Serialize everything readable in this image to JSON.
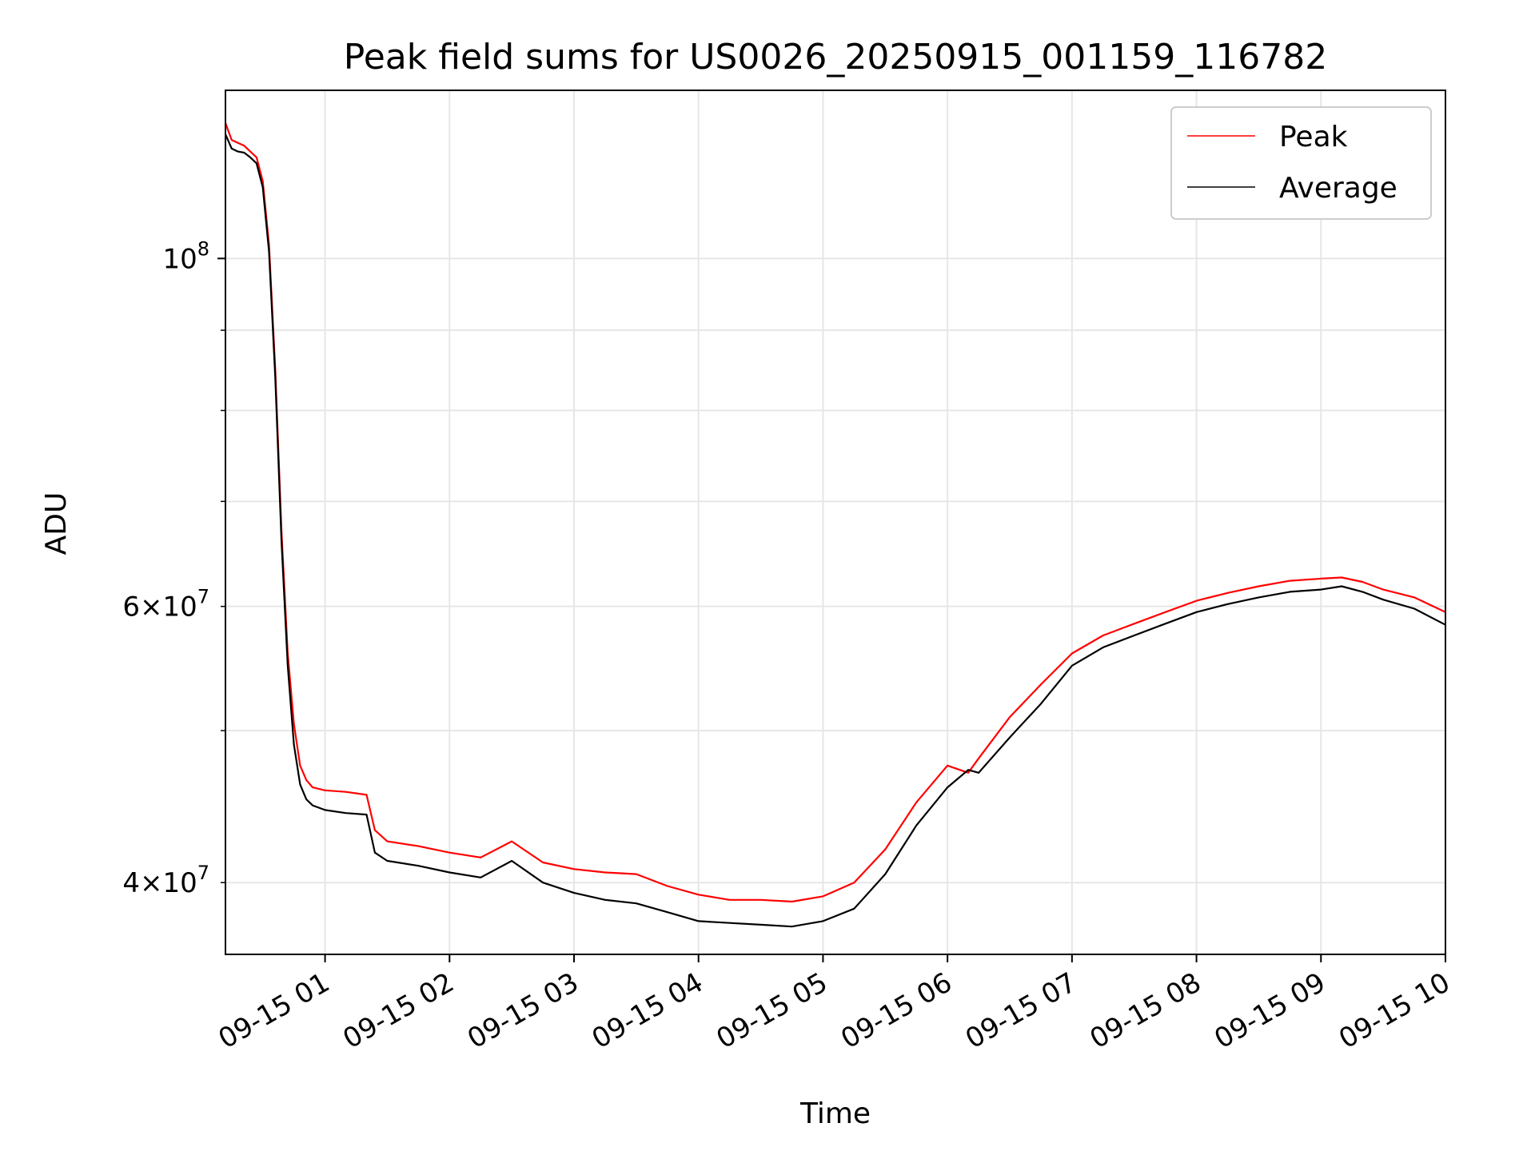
{
  "chart_data": {
    "type": "line",
    "title": "Peak field sums for US0026_20250915_001159_116782",
    "xlabel": "Time",
    "ylabel": "ADU",
    "yscale": "log",
    "xlim": [
      "09-15 00:12",
      "09-15 10:00"
    ],
    "ylim": [
      36000000,
      128000000
    ],
    "grid": true,
    "legend_position": "upper right",
    "x_ticks": [
      "09-15 01",
      "09-15 02",
      "09-15 03",
      "09-15 04",
      "09-15 05",
      "09-15 06",
      "09-15 07",
      "09-15 08",
      "09-15 09",
      "09-15 10"
    ],
    "y_ticks_major": [
      {
        "value": 100000000,
        "base": "10",
        "exp": "8"
      }
    ],
    "y_ticks_minor": [
      {
        "value": 40000000,
        "mant": "4",
        "base": "10",
        "exp": "7"
      },
      {
        "value": 50000000
      },
      {
        "value": 60000000,
        "mant": "6",
        "base": "10",
        "exp": "7"
      },
      {
        "value": 70000000
      },
      {
        "value": 80000000
      },
      {
        "value": 90000000
      }
    ],
    "x_time": [
      "09-15 00:12",
      "09-15 00:15",
      "09-15 00:18",
      "09-15 00:21",
      "09-15 00:24",
      "09-15 00:27",
      "09-15 00:30",
      "09-15 00:33",
      "09-15 00:36",
      "09-15 00:39",
      "09-15 00:42",
      "09-15 00:45",
      "09-15 00:48",
      "09-15 00:51",
      "09-15 00:54",
      "09-15 01:00",
      "09-15 01:10",
      "09-15 01:20",
      "09-15 01:24",
      "09-15 01:30",
      "09-15 01:45",
      "09-15 02:00",
      "09-15 02:15",
      "09-15 02:30",
      "09-15 02:45",
      "09-15 03:00",
      "09-15 03:15",
      "09-15 03:30",
      "09-15 03:45",
      "09-15 04:00",
      "09-15 04:15",
      "09-15 04:30",
      "09-15 04:45",
      "09-15 05:00",
      "09-15 05:15",
      "09-15 05:30",
      "09-15 05:45",
      "09-15 06:00",
      "09-15 06:10",
      "09-15 06:15",
      "09-15 06:30",
      "09-15 06:45",
      "09-15 07:00",
      "09-15 07:15",
      "09-15 07:30",
      "09-15 07:45",
      "09-15 08:00",
      "09-15 08:15",
      "09-15 08:30",
      "09-15 08:45",
      "09-15 09:00",
      "09-15 09:10",
      "09-15 09:20",
      "09-15 09:30",
      "09-15 09:45",
      "09-15 10:00"
    ],
    "series": [
      {
        "name": "Peak",
        "color": "#ff0000",
        "values": [
          122000000,
          119000000,
          118500000,
          118000000,
          117000000,
          116000000,
          112000000,
          102000000,
          85000000,
          67000000,
          56000000,
          50500000,
          47500000,
          46500000,
          46000000,
          45800000,
          45700000,
          45500000,
          43200000,
          42500000,
          42200000,
          41800000,
          41500000,
          42500000,
          41200000,
          40800000,
          40600000,
          40500000,
          39800000,
          39300000,
          39000000,
          39000000,
          38900000,
          39200000,
          40000000,
          42000000,
          45000000,
          47500000,
          47000000,
          48000000,
          51000000,
          53500000,
          56000000,
          57500000,
          58500000,
          59500000,
          60500000,
          61200000,
          61800000,
          62300000,
          62500000,
          62600000,
          62200000,
          61500000,
          60800000,
          59500000
        ]
      },
      {
        "name": "Average",
        "color": "#000000",
        "values": [
          120000000,
          117500000,
          117000000,
          116800000,
          116000000,
          115000000,
          111000000,
          101000000,
          84000000,
          66000000,
          55000000,
          49000000,
          46200000,
          45200000,
          44800000,
          44500000,
          44300000,
          44200000,
          41800000,
          41300000,
          41000000,
          40600000,
          40300000,
          41300000,
          40000000,
          39400000,
          39000000,
          38800000,
          38300000,
          37800000,
          37700000,
          37600000,
          37500000,
          37800000,
          38500000,
          40500000,
          43500000,
          46000000,
          47200000,
          47000000,
          49500000,
          52000000,
          55000000,
          56500000,
          57500000,
          58500000,
          59500000,
          60200000,
          60800000,
          61300000,
          61500000,
          61800000,
          61300000,
          60600000,
          59800000,
          58400000
        ]
      }
    ]
  }
}
